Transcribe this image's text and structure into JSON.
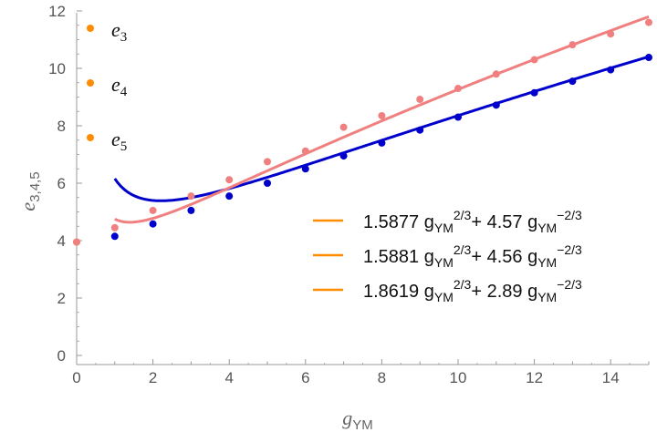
{
  "chart_data": {
    "type": "scatter",
    "xlabel": {
      "base": "g",
      "sub": "YM"
    },
    "ylabel": {
      "base": "e",
      "sub": "3,4,5"
    },
    "xlim": [
      0,
      15
    ],
    "ylim": [
      0,
      12
    ],
    "xticks": [
      "0",
      "2",
      "4",
      "6",
      "8",
      "10",
      "12",
      "14"
    ],
    "yticks": [
      "0",
      "2",
      "4",
      "6",
      "8",
      "10",
      "12"
    ],
    "colors": {
      "e3": "#ff8c00",
      "e4": "#0000cc",
      "e5": "#f08080",
      "fit_legend": "#ff8c00",
      "axis": "#999999",
      "tick_text": "#555555"
    },
    "point_legend": [
      {
        "base": "e",
        "sub": "3",
        "color": "#ff8c00"
      },
      {
        "base": "e",
        "sub": "4",
        "color": "#ff8c00"
      },
      {
        "base": "e",
        "sub": "5",
        "color": "#ff8c00"
      }
    ],
    "fit_legend": [
      {
        "coef1": "1.5877",
        "coef2": "4.57",
        "var": "g",
        "sub": "YM",
        "exp1": "2/3",
        "exp2": "−2/3",
        "plus": "+"
      },
      {
        "coef1": "1.5881",
        "coef2": "4.56",
        "var": "g",
        "sub": "YM",
        "exp1": "2/3",
        "exp2": "−2/3",
        "plus": "+"
      },
      {
        "coef1": "1.8619",
        "coef2": "2.89",
        "var": "g",
        "sub": "YM",
        "exp1": "2/3",
        "exp2": "−2/3",
        "plus": "+"
      }
    ],
    "series": [
      {
        "name": "e3",
        "x": [
          0
        ],
        "y": [
          3.95
        ],
        "color": "#ff8c00"
      },
      {
        "name": "e3-overlay",
        "x": [
          0
        ],
        "y": [
          3.95
        ],
        "color": "#f08080"
      },
      {
        "name": "e4",
        "color": "#0000cc",
        "x": [
          1,
          2,
          3,
          4,
          5,
          6,
          7,
          8,
          9,
          10,
          11,
          12,
          13,
          14,
          15
        ],
        "y": [
          4.15,
          4.58,
          5.05,
          5.55,
          6.0,
          6.5,
          6.95,
          7.4,
          7.85,
          8.3,
          8.72,
          9.15,
          9.55,
          9.95,
          10.38
        ]
      },
      {
        "name": "e5",
        "color": "#f08080",
        "x": [
          1,
          2,
          3,
          4,
          5,
          6,
          7,
          8,
          9,
          10,
          11,
          12,
          13,
          14,
          15
        ],
        "y": [
          4.45,
          5.05,
          5.55,
          6.12,
          6.75,
          7.12,
          7.95,
          8.35,
          8.92,
          9.3,
          9.8,
          10.3,
          10.82,
          11.2,
          11.6
        ]
      }
    ],
    "fits": [
      {
        "name": "fit-e4",
        "a": 1.5877,
        "b": 4.57,
        "x_from": 1,
        "x_to": 15,
        "color": "#0000cc"
      },
      {
        "name": "fit-e5",
        "a": 1.8619,
        "b": 2.89,
        "x_from": 1,
        "x_to": 15,
        "color": "#f08080"
      }
    ]
  }
}
